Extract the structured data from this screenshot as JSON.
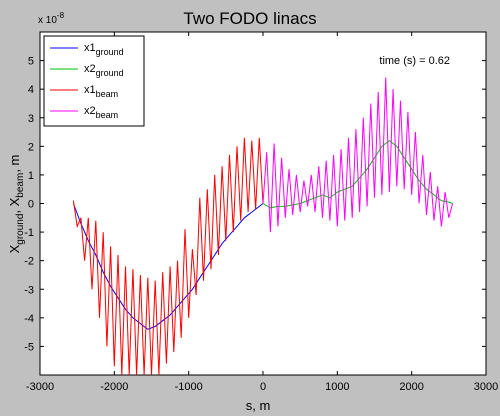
{
  "chart_data": {
    "type": "line",
    "title": "Two FODO linacs",
    "xlabel": "s, m",
    "ylabel_parts": {
      "x": "X",
      "ground": "ground",
      "sep": ", X",
      "beam": "beam",
      "unit": ", m"
    },
    "exponent_label": {
      "base": "x 10",
      "power": "-8"
    },
    "annotation": "time (s) = 0.62",
    "xlim": [
      -3000,
      3000
    ],
    "ylim": [
      -6,
      6
    ],
    "xticks": [
      -3000,
      -2000,
      -1000,
      0,
      1000,
      2000,
      3000
    ],
    "yticks": [
      -5,
      -4,
      -3,
      -2,
      -1,
      0,
      1,
      2,
      3,
      4,
      5
    ],
    "legend": {
      "placement": "top-left",
      "entries": [
        {
          "main": "x1",
          "sub": "ground",
          "color": "#0000ff"
        },
        {
          "main": "x2",
          "sub": "ground",
          "color": "#00c000"
        },
        {
          "main": "x1",
          "sub": "beam",
          "color": "#ff0000"
        },
        {
          "main": "x2",
          "sub": "beam",
          "color": "#ff00ff"
        }
      ]
    },
    "series": [
      {
        "key": "x1_ground",
        "color": "#0000ff",
        "x": [
          -2550,
          -2450,
          -2350,
          -2250,
          -2150,
          -2050,
          -1950,
          -1850,
          -1750,
          -1650,
          -1550,
          -1450,
          -1350,
          -1250,
          -1150,
          -1050,
          -950,
          -850,
          -750,
          -650,
          -550,
          -450,
          -350,
          -250,
          -150,
          -50,
          0
        ],
        "y": [
          0.0,
          -0.7,
          -1.3,
          -1.8,
          -2.4,
          -2.9,
          -3.3,
          -3.7,
          -4.0,
          -4.2,
          -4.4,
          -4.3,
          -4.1,
          -3.9,
          -3.6,
          -3.3,
          -3.0,
          -2.6,
          -2.2,
          -1.8,
          -1.4,
          -1.1,
          -0.8,
          -0.5,
          -0.3,
          -0.1,
          0.0
        ]
      },
      {
        "key": "x2_ground",
        "color": "#00c000",
        "x": [
          0,
          100,
          200,
          300,
          400,
          500,
          600,
          700,
          800,
          900,
          1000,
          1100,
          1200,
          1300,
          1400,
          1500,
          1600,
          1700,
          1800,
          1900,
          2000,
          2100,
          2200,
          2300,
          2400,
          2500,
          2550
        ],
        "y": [
          0.0,
          -0.15,
          -0.1,
          -0.1,
          -0.05,
          0.0,
          0.1,
          0.2,
          0.3,
          0.2,
          0.4,
          0.5,
          0.6,
          0.9,
          1.2,
          1.6,
          2.0,
          2.2,
          2.0,
          1.6,
          1.2,
          0.8,
          0.5,
          0.3,
          0.1,
          0.05,
          0.0
        ]
      },
      {
        "key": "x1_beam",
        "color": "#ff0000",
        "x": [
          -2550,
          -2500,
          -2450,
          -2400,
          -2350,
          -2300,
          -2250,
          -2200,
          -2150,
          -2100,
          -2050,
          -2000,
          -1950,
          -1900,
          -1850,
          -1800,
          -1750,
          -1700,
          -1650,
          -1600,
          -1550,
          -1500,
          -1450,
          -1400,
          -1350,
          -1300,
          -1250,
          -1200,
          -1150,
          -1100,
          -1050,
          -1000,
          -950,
          -900,
          -850,
          -800,
          -750,
          -700,
          -650,
          -600,
          -550,
          -500,
          -450,
          -400,
          -350,
          -300,
          -250,
          -200,
          -150,
          -100,
          -50,
          0
        ],
        "y": [
          0.1,
          -0.8,
          -0.5,
          -2.0,
          -0.5,
          -3.0,
          -0.6,
          -4.0,
          -1.0,
          -5.0,
          -1.5,
          -5.7,
          -1.8,
          -6.0,
          -2.2,
          -6.0,
          -2.3,
          -6.0,
          -2.5,
          -6.0,
          -2.6,
          -6.0,
          -2.7,
          -6.0,
          -2.4,
          -5.6,
          -2.2,
          -5.2,
          -2.0,
          -4.7,
          -0.9,
          -4.0,
          -1.6,
          -3.2,
          0.2,
          -2.7,
          0.5,
          -2.3,
          1.0,
          -1.8,
          1.3,
          -1.3,
          1.7,
          -1.0,
          2.0,
          -0.6,
          2.3,
          -0.3,
          2.2,
          -0.2,
          2.3,
          0.0
        ]
      },
      {
        "key": "x2_beam",
        "color": "#ff00ff",
        "x": [
          0,
          50,
          100,
          150,
          200,
          250,
          300,
          350,
          400,
          450,
          500,
          550,
          600,
          650,
          700,
          750,
          800,
          850,
          900,
          950,
          1000,
          1050,
          1100,
          1150,
          1200,
          1250,
          1300,
          1350,
          1400,
          1450,
          1500,
          1550,
          1600,
          1650,
          1700,
          1750,
          1800,
          1850,
          1900,
          1950,
          2000,
          2050,
          2100,
          2150,
          2200,
          2250,
          2300,
          2350,
          2400,
          2450,
          2500,
          2550
        ],
        "y": [
          0.0,
          1.8,
          -1.0,
          2.1,
          -0.8,
          1.6,
          -0.5,
          1.2,
          -0.4,
          1.0,
          -0.3,
          0.8,
          -0.1,
          1.0,
          -0.3,
          1.3,
          -0.5,
          1.5,
          -0.6,
          1.7,
          -0.8,
          1.9,
          -0.6,
          2.3,
          -0.5,
          2.6,
          -0.3,
          3.0,
          -0.1,
          3.5,
          0.2,
          3.9,
          0.3,
          4.4,
          0.4,
          4.0,
          0.6,
          3.6,
          0.5,
          3.2,
          0.3,
          2.5,
          0.0,
          1.7,
          -0.4,
          1.1,
          -0.6,
          0.6,
          -0.8,
          0.4,
          -0.5,
          0.0
        ]
      }
    ]
  }
}
